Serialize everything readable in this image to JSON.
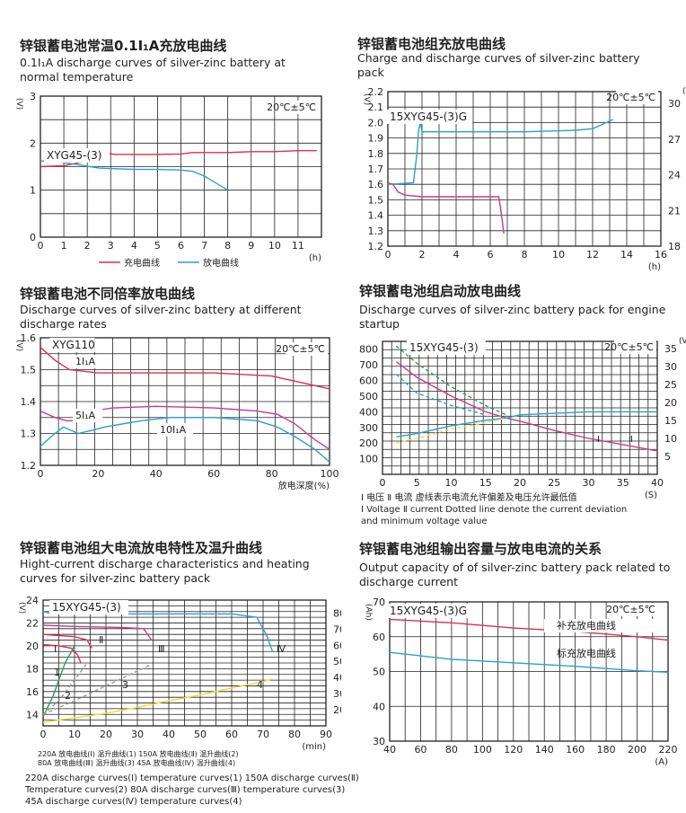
{
  "colors": {
    "red": "#d9304a",
    "blue": "#2a9fd0",
    "green": "#2f9a5a",
    "yellow": "#e8e23a",
    "gray": "#999999",
    "magenta": "#c83c8c",
    "grid": "#222222"
  },
  "charts": [
    {
      "cn": "锌银蓄电池常温0.1I₁A充放电曲线",
      "en": "0.1I₁A discharge curves of silver-zinc  battery at normal temperature"
    },
    {
      "cn": "锌银蓄电池组充放电曲线",
      "en": "Charge and discharge curves of silver-zinc  battery pack"
    },
    {
      "cn": "锌银蓄电池不同倍率放电曲线",
      "en": "Discharge curves of silver-zinc  battery at different discharge rates"
    },
    {
      "cn": "锌银蓄电池组启动放电曲线",
      "en": "Discharge curves of silver-zinc  battery pack for engine startup"
    },
    {
      "cn": "锌银蓄电池组大电流放电特性及温升曲线",
      "en": "Hight-current discharge characteristics and heating curves for silver-zinc battery pack"
    },
    {
      "cn": "锌银蓄电池组输出容量与放电电流的关系",
      "en": "Output capacity of of silver-zinc  battery pack related to discharge current"
    }
  ],
  "captions": {
    "c4_line1": "Ⅰ 电压    Ⅱ 电流    虚线表示电流允许偏差及电压允许最低值",
    "c4_line2": "Ⅰ Voltage    Ⅱ current   Dotted line denote the current deviation",
    "c4_line3": "and minimum voltage value",
    "c5_cn1": "220A 放电曲线(Ⅰ)    温升曲线(1)    150A 放电曲线(Ⅱ)    温升曲线(2)",
    "c5_cn2": "80A 放电曲线(Ⅲ)    温升曲线(3)    45A 放电曲线(Ⅳ)    温升曲线(4)",
    "c5_en1": "220A discharge curves(Ⅰ)  temperature curves(1)  150A discharge curves(Ⅱ)",
    "c5_en2": "Temperature curves(2)   80A discharge curves(Ⅲ)   temperature curves(3)",
    "c5_en3": "45A discharge curves(Ⅳ)  temperature curves(4)"
  },
  "chart_data": [
    {
      "type": "line",
      "ylabel": "(V)",
      "xlabel": "(h)",
      "xlim": [
        0,
        12
      ],
      "ylim": [
        0,
        3
      ],
      "xticks": [
        "0",
        "1",
        "2",
        "3",
        "4",
        "5",
        "6",
        "7",
        "8",
        "9",
        "10",
        "11"
      ],
      "yticks": [
        "0",
        "1",
        "2",
        "3"
      ],
      "annotations": [
        "20℃±5℃",
        "XYG45-(3)"
      ],
      "legend": [
        "充电曲线",
        "放电曲线"
      ],
      "series": [
        {
          "name": "充电曲线",
          "color": "red",
          "x": [
            0,
            1,
            1.8,
            2.8,
            3.2,
            5,
            6,
            6.5,
            7,
            8,
            9,
            10,
            11,
            11.8
          ],
          "y": [
            1.5,
            1.52,
            1.6,
            1.78,
            1.76,
            1.76,
            1.77,
            1.8,
            1.8,
            1.8,
            1.82,
            1.82,
            1.84,
            1.84
          ]
        },
        {
          "name": "放电曲线",
          "color": "blue",
          "x": [
            0,
            0.8,
            1.5,
            2.5,
            3.5,
            4,
            5,
            6,
            6.5,
            7,
            7.5,
            8
          ],
          "y": [
            1.62,
            1.6,
            1.55,
            1.47,
            1.45,
            1.44,
            1.44,
            1.43,
            1.4,
            1.3,
            1.15,
            1.0
          ]
        }
      ]
    },
    {
      "type": "line",
      "ylabel": "(V)",
      "y2label": "(V)",
      "xlabel": "(h)",
      "xlim": [
        0,
        16
      ],
      "ylim": [
        1.2,
        2.2
      ],
      "y2lim": [
        18,
        31
      ],
      "xticks": [
        "0",
        "2",
        "4",
        "6",
        "8",
        "10",
        "12",
        "14",
        "16"
      ],
      "yticks": [
        "1.2",
        "1.3",
        "1.4",
        "1.5",
        "1.6",
        "1.7",
        "1.8",
        "1.9",
        "2.0",
        "2.1",
        "2.2"
      ],
      "y2ticks": [
        "18",
        "21",
        "24",
        "27",
        "30"
      ],
      "annotations": [
        "20℃±5℃",
        "15XYG45-(3)G"
      ],
      "series": [
        {
          "name": "charge",
          "color": "blue",
          "x": [
            0,
            1.5,
            1.7,
            1.8,
            1.9,
            2,
            4,
            8,
            11,
            12,
            13.2
          ],
          "y": [
            1.6,
            1.61,
            1.8,
            1.95,
            2.0,
            1.94,
            1.94,
            1.94,
            1.95,
            1.96,
            2.02
          ]
        },
        {
          "name": "discharge",
          "color": "magenta",
          "x": [
            0,
            0.3,
            0.6,
            1,
            2,
            3,
            4,
            5,
            6.5,
            6.6,
            6.8
          ],
          "y": [
            1.61,
            1.6,
            1.55,
            1.53,
            1.52,
            1.52,
            1.52,
            1.52,
            1.52,
            1.45,
            1.28
          ]
        }
      ]
    },
    {
      "type": "line",
      "ylabel": "(V)",
      "xlabel": "放电深度(%)",
      "xlim": [
        0,
        100
      ],
      "ylim": [
        1.2,
        1.6
      ],
      "xticks": [
        "0",
        "20",
        "40",
        "60",
        "80",
        "100"
      ],
      "yticks": [
        "1.2",
        "1.3",
        "1.4",
        "1.5",
        "1.6"
      ],
      "annotations": [
        "20℃±5℃",
        "XYG110",
        "1I₁A",
        "5I₁A",
        "10I₁A"
      ],
      "series": [
        {
          "name": "1I₁A",
          "color": "red",
          "x": [
            0,
            5,
            10,
            20,
            40,
            60,
            80,
            85,
            90,
            100
          ],
          "y": [
            1.57,
            1.53,
            1.5,
            1.49,
            1.49,
            1.49,
            1.48,
            1.47,
            1.46,
            1.44
          ]
        },
        {
          "name": "5I₁A",
          "color": "magenta",
          "x": [
            0,
            5,
            9,
            13,
            18,
            25,
            40,
            60,
            75,
            82,
            88,
            95,
            100
          ],
          "y": [
            1.37,
            1.35,
            1.34,
            1.34,
            1.37,
            1.38,
            1.385,
            1.38,
            1.37,
            1.36,
            1.33,
            1.28,
            1.25
          ]
        },
        {
          "name": "10I₁A",
          "color": "blue",
          "x": [
            0,
            5,
            8,
            13,
            18,
            22,
            35,
            45,
            60,
            75,
            82,
            88,
            95,
            100
          ],
          "y": [
            1.26,
            1.3,
            1.32,
            1.3,
            1.31,
            1.32,
            1.34,
            1.35,
            1.35,
            1.34,
            1.32,
            1.29,
            1.25,
            1.21
          ]
        }
      ]
    },
    {
      "type": "line",
      "ylabel": "",
      "y2label": "(V)",
      "xlabel": "(S)",
      "xlim": [
        0,
        40
      ],
      "ylim": [
        0,
        850
      ],
      "y2lim": [
        0,
        37
      ],
      "xticks": [
        "0",
        "5",
        "10",
        "15",
        "20",
        "25",
        "30",
        "35",
        "40"
      ],
      "yticks": [
        "100",
        "200",
        "300",
        "400",
        "500",
        "600",
        "700",
        "800"
      ],
      "y2ticks": [
        "5",
        "10",
        "15",
        "20",
        "25",
        "30",
        "35"
      ],
      "annotations": [
        "20℃±5℃",
        "15XYG45-(3)",
        "Ⅰ",
        "Ⅱ"
      ],
      "series": [
        {
          "name": "current",
          "color": "magenta",
          "x": [
            2,
            5,
            10,
            15,
            18,
            20,
            25,
            30,
            35,
            40
          ],
          "y": [
            720,
            620,
            500,
            400,
            360,
            340,
            280,
            230,
            190,
            150
          ]
        },
        {
          "name": "current-upper",
          "color": "green",
          "dash": true,
          "x": [
            2,
            5,
            10,
            15,
            18
          ],
          "y": [
            820,
            710,
            560,
            440,
            380
          ]
        },
        {
          "name": "current-lower",
          "color": "blue",
          "dash": true,
          "x": [
            2,
            5,
            10,
            15
          ],
          "y": [
            640,
            520,
            440,
            380
          ]
        },
        {
          "name": "voltage",
          "color": "blue",
          "x": [
            2,
            5,
            10,
            15,
            18,
            20,
            25,
            30,
            35,
            40
          ],
          "y": [
            240,
            260,
            310,
            345,
            360,
            380,
            390,
            400,
            400,
            400
          ]
        },
        {
          "name": "voltage-min",
          "color": "yellow",
          "dash": true,
          "x": [
            2,
            5,
            10,
            15,
            18
          ],
          "y": [
            200,
            230,
            290,
            330,
            360
          ]
        }
      ]
    },
    {
      "type": "line",
      "ylabel": "(V)",
      "y2label": "(℃)",
      "xlabel": "(min)",
      "xlim": [
        0,
        90
      ],
      "ylim": [
        13,
        24
      ],
      "y2lim": [
        10,
        88
      ],
      "xticks": [
        "0",
        "10",
        "20",
        "30",
        "40",
        "50",
        "60",
        "70",
        "80",
        "90"
      ],
      "yticks": [
        "14",
        "16",
        "18",
        "20",
        "22",
        "24"
      ],
      "y2ticks": [
        "20",
        "30",
        "40",
        "50",
        "60",
        "70",
        "80"
      ],
      "annotations": [
        "15XYG45-(3)",
        "Ⅰ",
        "Ⅱ",
        "Ⅲ",
        "Ⅳ",
        "1",
        "2",
        "3",
        "4"
      ],
      "series": [
        {
          "name": "Ⅰ",
          "color": "red",
          "x": [
            0,
            5,
            9,
            11,
            12
          ],
          "y": [
            20.1,
            20,
            19.8,
            19.2,
            18.5
          ]
        },
        {
          "name": "Ⅱ",
          "color": "red",
          "x": [
            0,
            5,
            10,
            14,
            15.5
          ],
          "y": [
            21.0,
            20.9,
            20.8,
            20.5,
            19.8
          ]
        },
        {
          "name": "Ⅲ",
          "color": "magenta",
          "x": [
            0,
            10,
            25,
            32,
            34.5
          ],
          "y": [
            21.8,
            21.7,
            21.6,
            21.5,
            20.5
          ]
        },
        {
          "name": "Ⅳ",
          "color": "blue",
          "x": [
            0,
            3,
            20,
            40,
            60,
            68,
            71,
            73
          ],
          "y": [
            23.0,
            22.8,
            22.8,
            22.8,
            22.8,
            22.5,
            21,
            19.5
          ]
        },
        {
          "name": "1",
          "color": "green",
          "x": [
            0,
            3,
            7,
            10
          ],
          "y": [
            13.8,
            15.5,
            18.5,
            20.0
          ]
        },
        {
          "name": "2",
          "color": "gray",
          "dash": true,
          "x": [
            0,
            5,
            10,
            14
          ],
          "y": [
            14.0,
            15.2,
            17.0,
            18.5
          ]
        },
        {
          "name": "3",
          "color": "gray",
          "dash": true,
          "x": [
            0,
            10,
            20,
            30,
            34
          ],
          "y": [
            14.0,
            15.2,
            16.5,
            17.8,
            18.3
          ]
        },
        {
          "name": "4",
          "color": "yellow",
          "x": [
            0,
            10,
            20,
            30,
            40,
            50,
            60,
            70,
            73
          ],
          "y": [
            13.3,
            13.7,
            14.1,
            14.6,
            15.2,
            15.7,
            16.3,
            16.9,
            17.1
          ]
        }
      ]
    },
    {
      "type": "line",
      "ylabel": "(Ah)",
      "xlabel": "(A)",
      "xlim": [
        40,
        220
      ],
      "ylim": [
        30,
        70
      ],
      "xticks": [
        "40",
        "60",
        "80",
        "100",
        "120",
        "140",
        "160",
        "180",
        "200",
        "220"
      ],
      "yticks": [
        "30",
        "40",
        "50",
        "60",
        "70"
      ],
      "annotations": [
        "20℃±5℃",
        "15XYG45-(3)G"
      ],
      "legend": [
        "补充放电曲线",
        "标充放电曲线"
      ],
      "series": [
        {
          "name": "补充放电曲线",
          "color": "red",
          "x": [
            40,
            80,
            120,
            160,
            200,
            220
          ],
          "y": [
            65,
            64,
            62.5,
            61.5,
            60,
            59
          ]
        },
        {
          "name": "标充放电曲线",
          "color": "blue",
          "x": [
            40,
            80,
            120,
            160,
            200,
            220
          ],
          "y": [
            55.5,
            53.5,
            52.5,
            51.5,
            50.2,
            49.8
          ]
        }
      ]
    }
  ]
}
